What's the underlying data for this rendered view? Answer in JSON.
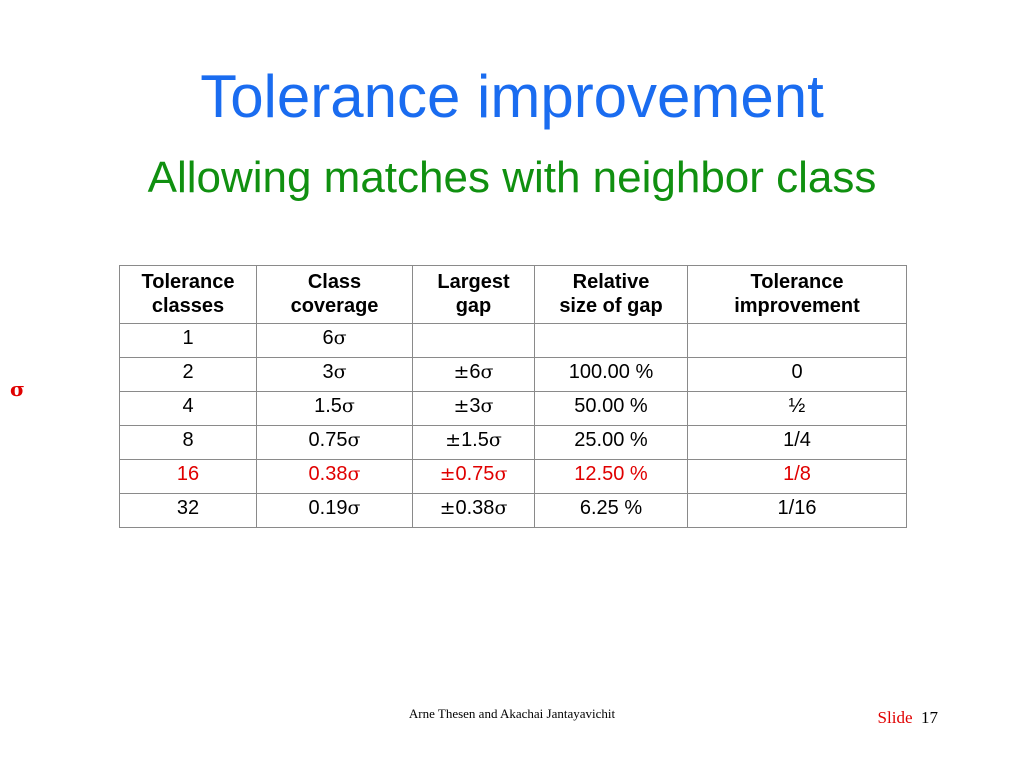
{
  "slide": {
    "title": "Tolerance improvement",
    "subtitle": "Allowing matches with neighbor class",
    "side_mark": "σ",
    "footer": "Arne Thesen and Akachai Jantayavichit",
    "slide_label": "Slide",
    "slide_number": "17"
  },
  "colors": {
    "title": "#1a6cf0",
    "subtitle": "#109010",
    "highlight": "#e00000",
    "slide_label": "#e00000",
    "side_mark": "#e00000"
  },
  "table": {
    "columns": [
      [
        "Tolerance",
        "classes"
      ],
      [
        "Class",
        "coverage"
      ],
      [
        "Largest",
        "gap"
      ],
      [
        "Relative",
        "size of gap"
      ],
      [
        "Tolerance",
        "improvement"
      ]
    ],
    "rows": [
      {
        "classes": "1",
        "coverage": "6",
        "gap": "",
        "relative": "",
        "improvement": "",
        "highlight": false
      },
      {
        "classes": "2",
        "coverage": "3",
        "gap": "6",
        "relative": "100.00 %",
        "improvement": "0",
        "highlight": false
      },
      {
        "classes": "4",
        "coverage": "1.5",
        "gap": "3",
        "relative": "50.00 %",
        "improvement": "½",
        "highlight": false
      },
      {
        "classes": "8",
        "coverage": "0.75",
        "gap": "1.5",
        "relative": "25.00 %",
        "improvement": "1/4",
        "highlight": false
      },
      {
        "classes": "16",
        "coverage": "0.38",
        "gap": "0.75",
        "relative": "12.50 %",
        "improvement": "1/8",
        "highlight": true
      },
      {
        "classes": "32",
        "coverage": "0.19",
        "gap": "0.38",
        "relative": "6.25 %",
        "improvement": "1/16",
        "highlight": false
      }
    ],
    "sigma_symbol": "σ",
    "plusminus_symbol": "±"
  }
}
